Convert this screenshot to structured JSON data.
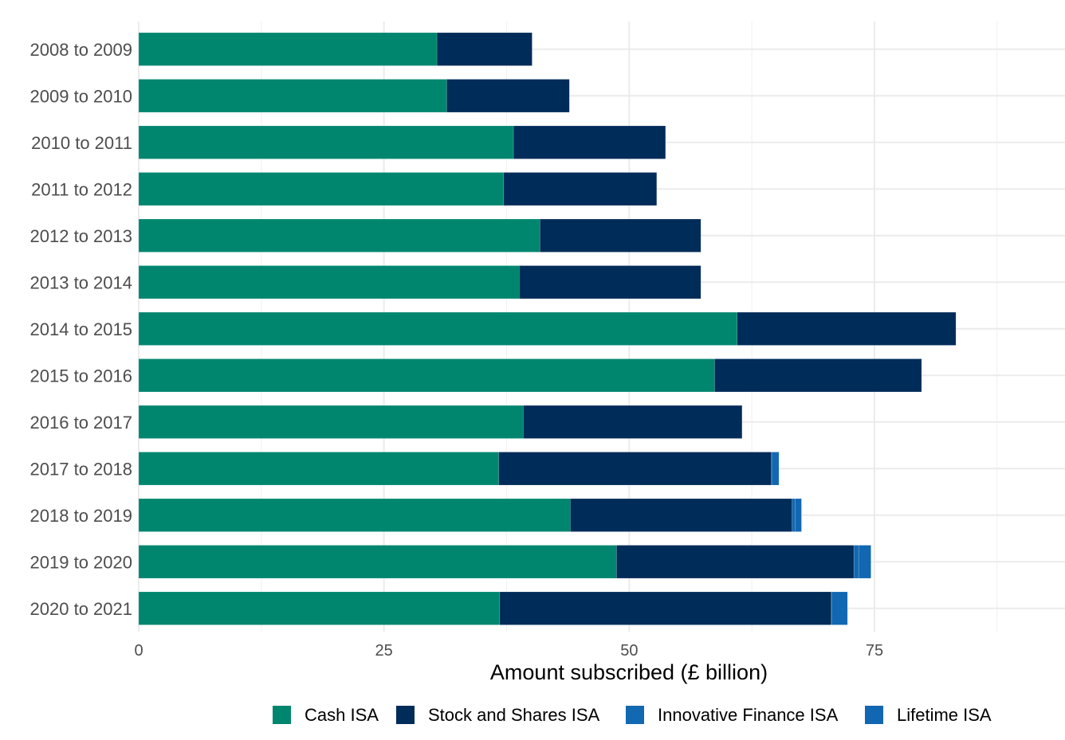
{
  "chart_data": {
    "type": "bar",
    "orientation": "horizontal",
    "stacked": true,
    "title": "",
    "xlabel": "Amount subscribed (£ billion)",
    "ylabel": "",
    "xlim": [
      0,
      94.5
    ],
    "x_ticks": [
      0,
      25,
      50,
      75
    ],
    "x_tick_labels": [
      "0",
      "25",
      "50",
      "75"
    ],
    "grid": true,
    "legend_position": "bottom",
    "categories": [
      "2008 to 2009",
      "2009 to 2010",
      "2010 to 2011",
      "2011 to 2012",
      "2012 to 2013",
      "2013 to 2014",
      "2014 to 2015",
      "2015 to 2016",
      "2016 to 2017",
      "2017 to 2018",
      "2018 to 2019",
      "2019 to 2020",
      "2020 to 2021"
    ],
    "series": [
      {
        "name": "Cash ISA",
        "color": "#00866f",
        "values": [
          30.4,
          31.4,
          38.2,
          37.2,
          40.9,
          38.8,
          61.0,
          58.7,
          39.2,
          36.7,
          44.0,
          48.7,
          36.8
        ]
      },
      {
        "name": "Stock and Shares ISA",
        "color": "#002c59",
        "values": [
          9.7,
          12.5,
          15.5,
          15.6,
          16.4,
          18.5,
          22.3,
          21.1,
          22.3,
          27.8,
          22.6,
          24.2,
          33.8
        ]
      },
      {
        "name": "Innovative Finance ISA",
        "color": "#1268b1",
        "values": [
          0,
          0,
          0,
          0,
          0,
          0,
          0,
          0,
          0,
          0.04,
          0.33,
          0.49,
          0.05
        ]
      },
      {
        "name": "Lifetime ISA",
        "color": "#1167b2",
        "values": [
          0,
          0,
          0,
          0,
          0,
          0,
          0,
          0,
          0,
          0.72,
          0.63,
          1.25,
          1.6
        ]
      }
    ]
  }
}
